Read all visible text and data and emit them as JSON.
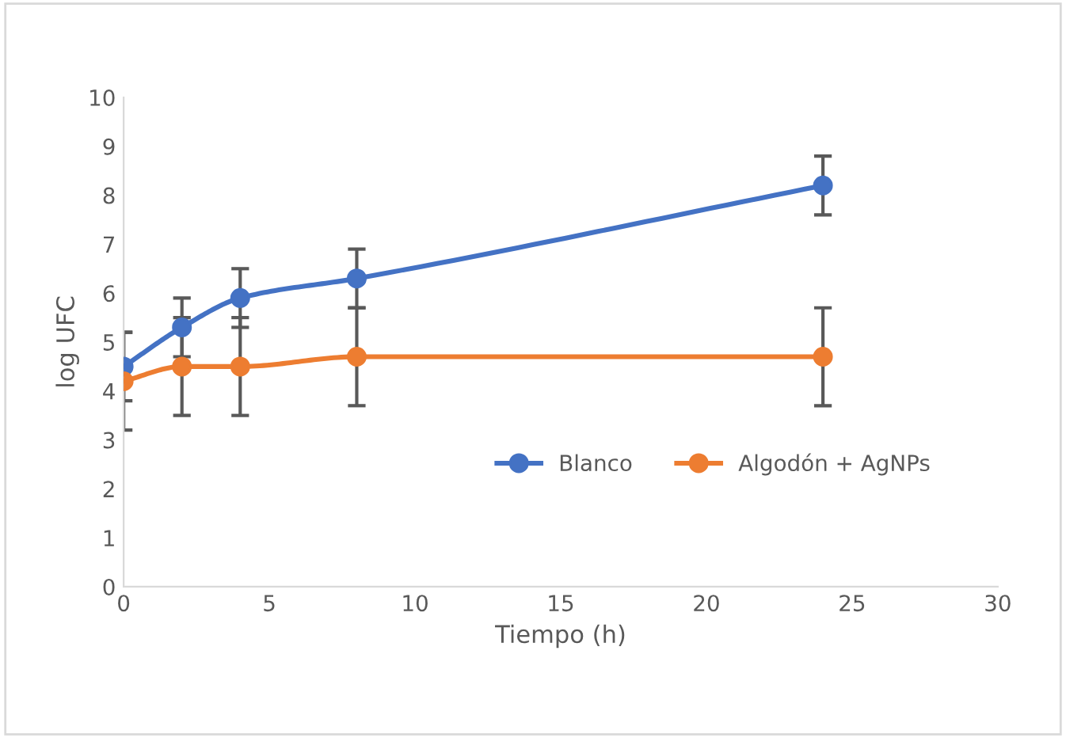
{
  "chart_data": {
    "type": "line",
    "xlabel": "Tiempo (h)",
    "ylabel": "log UFC",
    "x": [
      0,
      2,
      4,
      8,
      24
    ],
    "series": [
      {
        "name": "Blanco",
        "color": "#4472c4",
        "values": [
          4.5,
          5.3,
          5.9,
          6.3,
          8.2
        ],
        "errors": [
          0.7,
          0.6,
          0.6,
          0.6,
          0.6
        ]
      },
      {
        "name": "Algodón + AgNPs",
        "color": "#ed7d31",
        "values": [
          4.2,
          4.5,
          4.5,
          4.7,
          4.7
        ],
        "errors": [
          1,
          1,
          1,
          1,
          1
        ]
      }
    ],
    "xlim": [
      0,
      30
    ],
    "xticks": [
      0,
      5,
      10,
      15,
      20,
      25,
      30
    ],
    "ylim": [
      0,
      10
    ],
    "yticks": [
      0,
      1,
      2,
      3,
      4,
      5,
      6,
      7,
      8,
      9,
      10
    ],
    "grid": false,
    "legend": "center",
    "marker": "circle",
    "line_style": "solid"
  }
}
